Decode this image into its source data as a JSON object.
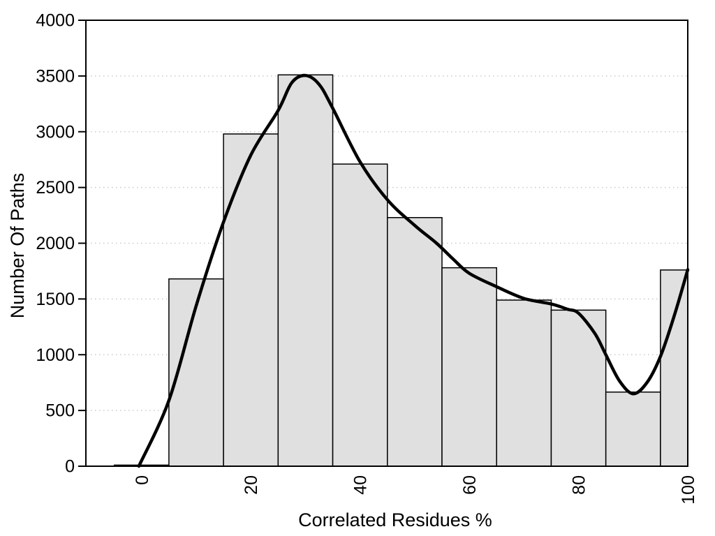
{
  "chart_data": {
    "type": "bar",
    "subtype": "histogram_with_smooth_curve",
    "title": "",
    "xlabel": "Correlated Residues %",
    "ylabel": "Number Of Paths",
    "xlim": [
      -10.2,
      100
    ],
    "ylim": [
      0,
      4000
    ],
    "x_ticks": [
      0,
      20,
      40,
      60,
      80,
      100
    ],
    "y_ticks": [
      0,
      500,
      1000,
      1500,
      2000,
      2500,
      3000,
      3500,
      4000
    ],
    "grid": {
      "horizontal": true,
      "style": "dotted",
      "on_ticks": [
        500,
        1000,
        1500,
        2000,
        2500,
        3000,
        3500
      ]
    },
    "legend": "none",
    "x_tick_label_rotation": -90,
    "bars": [
      {
        "from": -5,
        "to": 5,
        "value": 10
      },
      {
        "from": 5,
        "to": 15,
        "value": 1680
      },
      {
        "from": 15,
        "to": 25,
        "value": 2980
      },
      {
        "from": 25,
        "to": 35,
        "value": 3510
      },
      {
        "from": 35,
        "to": 45,
        "value": 2710
      },
      {
        "from": 45,
        "to": 55,
        "value": 2230
      },
      {
        "from": 55,
        "to": 65,
        "value": 1780
      },
      {
        "from": 65,
        "to": 75,
        "value": 1490
      },
      {
        "from": 75,
        "to": 85,
        "value": 1400
      },
      {
        "from": 85,
        "to": 95,
        "value": 665
      },
      {
        "from": 95,
        "to": 100,
        "value": 1760
      }
    ],
    "curve": [
      [
        -0.5,
        0
      ],
      [
        5,
        590
      ],
      [
        10,
        1440
      ],
      [
        15,
        2190
      ],
      [
        20,
        2790
      ],
      [
        25,
        3190
      ],
      [
        27.5,
        3440
      ],
      [
        30,
        3505
      ],
      [
        32.5,
        3425
      ],
      [
        35,
        3210
      ],
      [
        40,
        2730
      ],
      [
        45,
        2390
      ],
      [
        50,
        2160
      ],
      [
        54,
        2000
      ],
      [
        57,
        1860
      ],
      [
        60,
        1730
      ],
      [
        65,
        1610
      ],
      [
        70,
        1505
      ],
      [
        75,
        1455
      ],
      [
        78,
        1408
      ],
      [
        80,
        1372
      ],
      [
        83,
        1190
      ],
      [
        85,
        1000
      ],
      [
        87.5,
        765
      ],
      [
        90,
        650
      ],
      [
        92.5,
        748
      ],
      [
        95,
        985
      ],
      [
        97.5,
        1345
      ],
      [
        100,
        1763
      ]
    ],
    "colors": {
      "bar_fill": "#e0e0e0",
      "bar_border": "#000000",
      "curve": "#000000",
      "grid": "#c9c9c9",
      "axis": "#000000",
      "background": "#ffffff",
      "text": "#000000"
    }
  }
}
